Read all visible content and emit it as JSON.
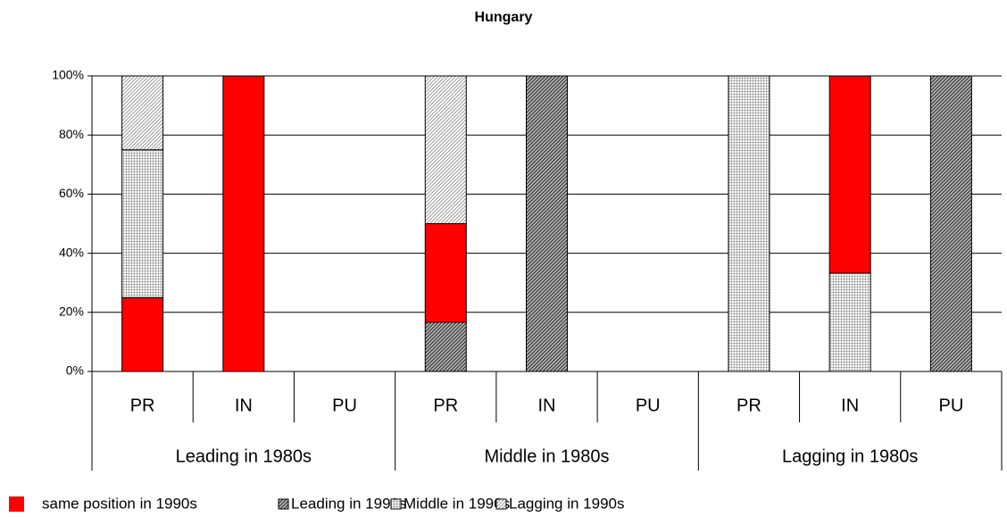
{
  "chart_data": {
    "type": "stacked-bar",
    "title": "Hungary",
    "groups": [
      "Leading in 1980s",
      "Middle in 1980s",
      "Lagging in 1980s"
    ],
    "categories": [
      "PR",
      "IN",
      "PU",
      "PR",
      "IN",
      "PU",
      "PR",
      "IN",
      "PU"
    ],
    "series": [
      {
        "name": "same position in 1990s",
        "color": "#ff0000",
        "pattern": "solid",
        "values": [
          25,
          100,
          0,
          33.3,
          0,
          0,
          0,
          66.7,
          0
        ]
      },
      {
        "name": "Leading in 1990s",
        "color": "#333333",
        "pattern": "dense-diagonal",
        "values": [
          0,
          0,
          0,
          16.7,
          100,
          0,
          0,
          0,
          100
        ]
      },
      {
        "name": "Middle in 1990s",
        "color": "#777777",
        "pattern": "fine-grid",
        "values": [
          50,
          0,
          0,
          0,
          0,
          0,
          100,
          33.3,
          0
        ]
      },
      {
        "name": "Lagging in 1990s",
        "color": "#888888",
        "pattern": "light-diagonal",
        "values": [
          25,
          0,
          0,
          50,
          0,
          0,
          0,
          0,
          0
        ]
      }
    ],
    "ylim": [
      0,
      100
    ],
    "yticks": [
      {
        "value": 0,
        "label": "0%"
      },
      {
        "value": 20,
        "label": "20%"
      },
      {
        "value": 40,
        "label": "40%"
      },
      {
        "value": 60,
        "label": "60%"
      },
      {
        "value": 80,
        "label": "80%"
      },
      {
        "value": 100,
        "label": "100%"
      }
    ],
    "grid": true
  }
}
